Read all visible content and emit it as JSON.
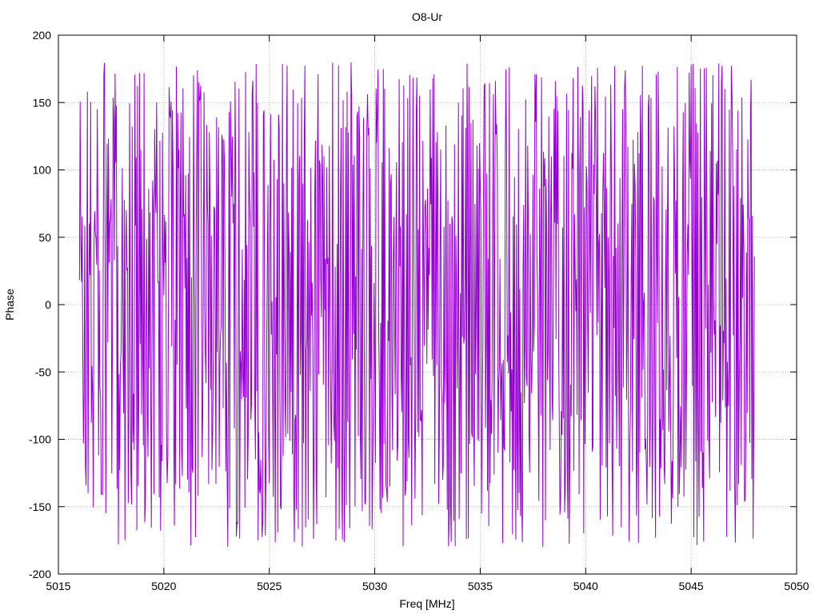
{
  "chart_data": {
    "type": "line",
    "title": "O8-Ur",
    "xlabel": "Freq [MHz]",
    "ylabel": "Phase",
    "xlim": [
      5015,
      5050
    ],
    "ylim": [
      -200,
      200
    ],
    "x_ticks": [
      5015,
      5020,
      5025,
      5030,
      5035,
      5040,
      5045,
      5050
    ],
    "y_ticks": [
      -200,
      -150,
      -100,
      -50,
      0,
      50,
      100,
      150,
      200
    ],
    "grid": true,
    "legend": "none",
    "series": [
      {
        "color": "#9400d3",
        "x_range": [
          5016.0,
          5048.0
        ],
        "x_step": 0.03125,
        "y_range": [
          -180,
          180
        ],
        "values_pattern": "dense rapidly oscillating phase samples spanning approximately -180 to +180"
      }
    ]
  }
}
